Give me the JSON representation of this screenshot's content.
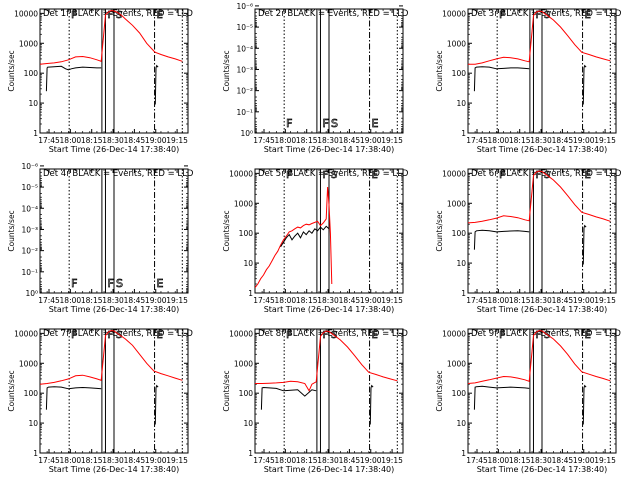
{
  "figure": {
    "colors": {
      "events": "#000000",
      "lld": "#ff0000",
      "axis": "#000000",
      "background": "#ffffff"
    },
    "xlabel": "Start Time (26-Dec-14 17:38:40)",
    "ylabel": "Counts/sec",
    "x_tick_labels": [
      "17:45",
      "18:00",
      "18:15",
      "18:30",
      "18:45",
      "19:00",
      "19:15"
    ],
    "x_tick_minutes": [
      6.33,
      21.33,
      36.33,
      51.33,
      66.33,
      81.33,
      96.33
    ],
    "xlim_minutes": [
      0,
      104
    ],
    "event_lines": [
      {
        "kind": "dotted",
        "x_minutes": 20.5,
        "label": "F",
        "label_style": "outline"
      },
      {
        "kind": "solid",
        "x_minutes": 43.5,
        "label": ""
      },
      {
        "kind": "solid",
        "x_minutes": 46.0,
        "label": "F",
        "label_style": "outline"
      },
      {
        "kind": "solid",
        "x_minutes": 52.0,
        "label": "S",
        "label_style": "outline"
      },
      {
        "kind": "dashdot",
        "x_minutes": 80.5,
        "label": "E",
        "label_style": "outline"
      },
      {
        "kind": "dotted",
        "x_minutes": 100.0,
        "label": ""
      }
    ]
  },
  "chart_data": [
    {
      "type": "line",
      "panel_id": "det-1f",
      "title": "Det 1f BLACK = Events, RED = LLD",
      "yscale": "log",
      "ylim": [
        1,
        14000
      ],
      "y_tick_labels": [
        "1",
        "10",
        "100",
        "1000",
        "10000"
      ],
      "y_tick_values": [
        1,
        10,
        100,
        1000,
        10000
      ],
      "show_event_labels": false,
      "series": [
        {
          "color": "red",
          "x": [
            0,
            5,
            10,
            15,
            20,
            25,
            30,
            35,
            40,
            43,
            46,
            48,
            50,
            52,
            54,
            56,
            58,
            60,
            65,
            70,
            75,
            80,
            81,
            85,
            90,
            95,
            100
          ],
          "y": [
            200,
            210,
            220,
            240,
            280,
            350,
            360,
            330,
            280,
            250,
            9000,
            11000,
            12500,
            12000,
            11000,
            9500,
            8000,
            6500,
            4000,
            2200,
            1000,
            550,
            500,
            420,
            350,
            300,
            250
          ]
        },
        {
          "color": "black",
          "x": [
            4.5,
            5,
            5.5,
            6,
            10,
            15,
            18,
            20,
            22,
            25,
            30,
            35,
            40,
            43
          ],
          "y": [
            25,
            150,
            160,
            160,
            165,
            170,
            140,
            130,
            140,
            150,
            160,
            155,
            150,
            150
          ]
        },
        {
          "color": "black",
          "x": [
            81,
            81.5,
            82,
            83
          ],
          "y": [
            9,
            150,
            180,
            160
          ]
        }
      ]
    },
    {
      "type": "line",
      "panel_id": "det-2r",
      "title": "Det 2r BLACK = Events, RED = LLD",
      "yscale": "log",
      "ylim": [
        1,
        1.4e-06
      ],
      "y_tick_labels": [
        "10⁰",
        "10⁻¹",
        "10⁻²",
        "10⁻³",
        "10⁻⁴",
        "10⁻⁵",
        "10⁻⁶"
      ],
      "y_tick_values": [
        1,
        0.1,
        0.01,
        0.001,
        0.0001,
        1e-05,
        1e-06
      ],
      "show_event_labels": true,
      "series": []
    },
    {
      "type": "line",
      "panel_id": "det-3r",
      "title": "Det 3r BLACK = Events, RED = LLD",
      "yscale": "log",
      "ylim": [
        1,
        14000
      ],
      "y_tick_labels": [
        "1",
        "10",
        "100",
        "1000",
        "10000"
      ],
      "y_tick_values": [
        1,
        10,
        100,
        1000,
        10000
      ],
      "show_event_labels": false,
      "series": [
        {
          "color": "red",
          "x": [
            0,
            5,
            10,
            15,
            20,
            25,
            30,
            35,
            40,
            43,
            46,
            48,
            50,
            52,
            55,
            60,
            65,
            70,
            75,
            80,
            85,
            90,
            95,
            100
          ],
          "y": [
            200,
            200,
            220,
            260,
            300,
            340,
            330,
            300,
            260,
            240,
            8500,
            11000,
            12000,
            11500,
            9000,
            6000,
            3500,
            1800,
            900,
            500,
            420,
            350,
            300,
            260
          ]
        },
        {
          "color": "black",
          "x": [
            4.5,
            5,
            6,
            10,
            15,
            20,
            25,
            30,
            35,
            40,
            43
          ],
          "y": [
            25,
            150,
            160,
            165,
            160,
            140,
            145,
            150,
            150,
            145,
            140
          ]
        },
        {
          "color": "black",
          "x": [
            81,
            81.5,
            82,
            83
          ],
          "y": [
            9,
            150,
            180,
            160
          ]
        }
      ]
    },
    {
      "type": "line",
      "panel_id": "det-4r",
      "title": "Det 4r BLACK = Events, RED = LLD",
      "yscale": "log",
      "ylim": [
        1,
        1.4e-06
      ],
      "y_tick_labels": [
        "10⁰",
        "10⁻¹",
        "10⁻²",
        "10⁻³",
        "10⁻⁴",
        "10⁻⁵",
        "10⁻⁶"
      ],
      "y_tick_values": [
        1,
        0.1,
        0.01,
        0.001,
        0.0001,
        1e-05,
        1e-06
      ],
      "show_event_labels": true,
      "series": []
    },
    {
      "type": "line",
      "panel_id": "det-5r",
      "title": "Det 5r BLACK = Events, RED = LLD",
      "yscale": "log",
      "ylim": [
        1,
        14000
      ],
      "y_tick_labels": [
        "1",
        "10",
        "100",
        "1000",
        "10000"
      ],
      "y_tick_values": [
        1,
        10,
        100,
        1000,
        10000
      ],
      "show_event_labels": false,
      "series": [
        {
          "color": "red",
          "x": [
            0,
            2,
            4,
            6,
            8,
            10,
            12,
            14,
            16,
            18,
            20,
            22,
            24,
            26,
            28,
            30,
            32,
            34,
            36,
            38,
            40,
            42,
            44,
            46,
            48,
            50,
            51,
            52,
            53,
            54
          ],
          "y": [
            1.5,
            2,
            3,
            4,
            6,
            8,
            12,
            18,
            25,
            40,
            60,
            80,
            110,
            120,
            140,
            160,
            150,
            180,
            200,
            190,
            210,
            230,
            250,
            180,
            220,
            300,
            3500,
            900,
            100,
            2
          ]
        },
        {
          "color": "black",
          "x": [
            18,
            20,
            22,
            24,
            26,
            28,
            30,
            32,
            34,
            36,
            38,
            40,
            42,
            44,
            46,
            48,
            50,
            52
          ],
          "y": [
            35,
            50,
            70,
            90,
            60,
            80,
            100,
            70,
            110,
            90,
            120,
            100,
            140,
            120,
            160,
            130,
            170,
            140
          ]
        }
      ]
    },
    {
      "type": "line",
      "panel_id": "det-6r",
      "title": "Det 6r BLACK = Events, RED = LLD",
      "yscale": "log",
      "ylim": [
        1,
        14000
      ],
      "y_tick_labels": [
        "1",
        "10",
        "100",
        "1000",
        "10000"
      ],
      "y_tick_values": [
        1,
        10,
        100,
        1000,
        10000
      ],
      "show_event_labels": false,
      "series": [
        {
          "color": "red",
          "x": [
            0,
            5,
            10,
            15,
            20,
            25,
            30,
            35,
            40,
            43,
            46,
            48,
            50,
            52,
            55,
            60,
            65,
            70,
            75,
            80,
            85,
            90,
            95,
            100
          ],
          "y": [
            220,
            230,
            250,
            280,
            320,
            380,
            360,
            330,
            280,
            260,
            8500,
            11000,
            12000,
            11500,
            9000,
            6000,
            3500,
            1800,
            900,
            500,
            420,
            350,
            300,
            250
          ]
        },
        {
          "color": "black",
          "x": [
            4.5,
            5,
            6,
            10,
            15,
            20,
            25,
            30,
            35,
            40,
            43
          ],
          "y": [
            28,
            110,
            120,
            125,
            120,
            110,
            115,
            118,
            120,
            115,
            110
          ]
        },
        {
          "color": "black",
          "x": [
            81,
            81.5,
            82,
            83
          ],
          "y": [
            9,
            150,
            180,
            160
          ]
        }
      ]
    },
    {
      "type": "line",
      "panel_id": "det-7f",
      "title": "Det 7f BLACK = Events, RED = LLD",
      "yscale": "log",
      "ylim": [
        1,
        14000
      ],
      "y_tick_labels": [
        "1",
        "10",
        "100",
        "1000",
        "10000"
      ],
      "y_tick_values": [
        1,
        10,
        100,
        1000,
        10000
      ],
      "show_event_labels": false,
      "series": [
        {
          "color": "red",
          "x": [
            0,
            5,
            10,
            15,
            20,
            25,
            30,
            35,
            40,
            43,
            46,
            48,
            50,
            52,
            55,
            60,
            65,
            70,
            75,
            80,
            85,
            90,
            95,
            100
          ],
          "y": [
            200,
            210,
            230,
            260,
            300,
            380,
            400,
            350,
            300,
            270,
            8500,
            11000,
            12500,
            12000,
            9500,
            6500,
            4000,
            2000,
            1000,
            550,
            450,
            380,
            320,
            270
          ]
        },
        {
          "color": "black",
          "x": [
            4.5,
            5,
            6,
            10,
            15,
            20,
            25,
            30,
            35,
            40,
            43
          ],
          "y": [
            28,
            150,
            160,
            165,
            160,
            140,
            150,
            155,
            150,
            145,
            140
          ]
        },
        {
          "color": "black",
          "x": [
            81,
            81.5,
            82,
            83
          ],
          "y": [
            9,
            150,
            180,
            160
          ]
        }
      ]
    },
    {
      "type": "line",
      "panel_id": "det-8f",
      "title": "Det 8f BLACK = Events, RED = LLD",
      "yscale": "log",
      "ylim": [
        1,
        14000
      ],
      "y_tick_labels": [
        "1",
        "10",
        "100",
        "1000",
        "10000"
      ],
      "y_tick_values": [
        1,
        10,
        100,
        1000,
        10000
      ],
      "show_event_labels": false,
      "series": [
        {
          "color": "red",
          "x": [
            0,
            5,
            10,
            15,
            20,
            25,
            30,
            35,
            38,
            40,
            43,
            46,
            48,
            50,
            52,
            55,
            60,
            65,
            70,
            75,
            80,
            85,
            90,
            95,
            100
          ],
          "y": [
            210,
            210,
            215,
            220,
            230,
            250,
            240,
            210,
            120,
            200,
            240,
            8000,
            10500,
            12000,
            11500,
            9000,
            6000,
            3500,
            1800,
            900,
            500,
            420,
            350,
            300,
            260
          ]
        },
        {
          "color": "black",
          "x": [
            4.5,
            5,
            6,
            10,
            15,
            20,
            25,
            30,
            35,
            40,
            43
          ],
          "y": [
            28,
            150,
            155,
            150,
            145,
            120,
            125,
            130,
            80,
            130,
            120
          ]
        },
        {
          "color": "black",
          "x": [
            81,
            81.5,
            82,
            83
          ],
          "y": [
            9,
            150,
            180,
            160
          ]
        }
      ]
    },
    {
      "type": "line",
      "panel_id": "det-9f",
      "title": "Det 9f BLACK = Events, RED = LLD",
      "yscale": "log",
      "ylim": [
        1,
        14000
      ],
      "y_tick_labels": [
        "1",
        "10",
        "100",
        "1000",
        "10000"
      ],
      "y_tick_values": [
        1,
        10,
        100,
        1000,
        10000
      ],
      "show_event_labels": false,
      "series": [
        {
          "color": "red",
          "x": [
            0,
            5,
            10,
            15,
            20,
            25,
            30,
            35,
            40,
            43,
            46,
            48,
            50,
            52,
            55,
            60,
            65,
            70,
            75,
            80,
            85,
            90,
            95,
            100
          ],
          "y": [
            210,
            220,
            250,
            280,
            320,
            360,
            350,
            320,
            280,
            250,
            8500,
            11000,
            12500,
            12000,
            9500,
            6500,
            3800,
            2000,
            950,
            520,
            430,
            360,
            310,
            260
          ]
        },
        {
          "color": "black",
          "x": [
            4.5,
            5,
            6,
            10,
            15,
            20,
            25,
            30,
            35,
            40,
            43
          ],
          "y": [
            28,
            160,
            165,
            170,
            160,
            150,
            155,
            160,
            155,
            150,
            145
          ]
        },
        {
          "color": "black",
          "x": [
            81,
            81.5,
            82,
            83
          ],
          "y": [
            9,
            150,
            180,
            160
          ]
        }
      ]
    }
  ]
}
